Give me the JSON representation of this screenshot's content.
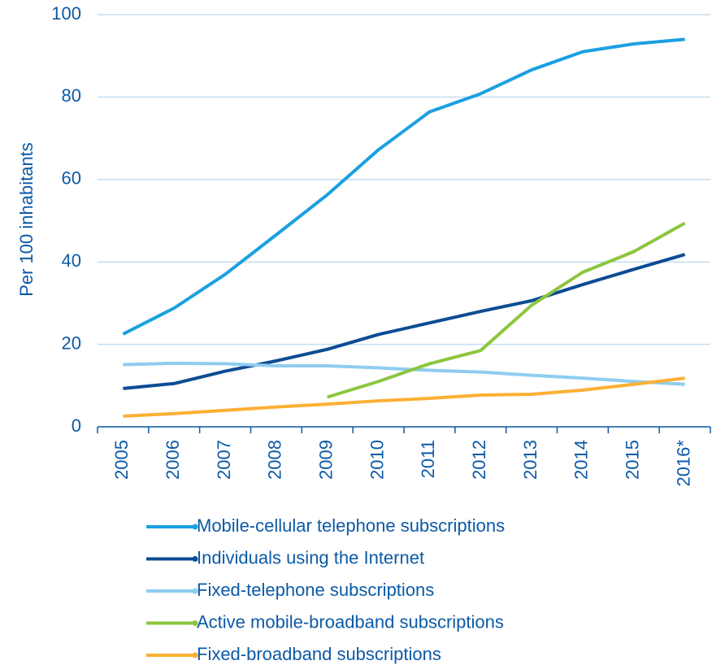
{
  "chart_data": {
    "type": "line",
    "y_label": "Per 100 inhabitants",
    "categories": [
      "2005",
      "2006",
      "2007",
      "2008",
      "2009",
      "2010",
      "2011",
      "2012",
      "2013",
      "2014",
      "2015",
      "2016*"
    ],
    "ylim": [
      0,
      100
    ],
    "yticks": [
      0,
      20,
      40,
      60,
      80,
      100
    ],
    "grid": true,
    "series": [
      {
        "name": "Mobile-cellular telephone subscriptions",
        "color": "#1ba0e1",
        "values": [
          22.5,
          28.8,
          37,
          46.6,
          56.3,
          67.2,
          76.4,
          80.8,
          86.6,
          91,
          92.9,
          94
        ]
      },
      {
        "name": "Individuals using the Internet",
        "color": "#0d4c93",
        "values": [
          9.3,
          10.5,
          13.5,
          16,
          18.8,
          22.4,
          25.2,
          28,
          30.6,
          34.5,
          38.2,
          41.8
        ]
      },
      {
        "name": "Fixed-telephone subscriptions",
        "color": "#8ecdf0",
        "values": [
          15.1,
          15.4,
          15.3,
          14.8,
          14.8,
          14.3,
          13.7,
          13.3,
          12.5,
          11.8,
          11,
          10.3
        ]
      },
      {
        "name": "Active mobile-broadband subscriptions",
        "color": "#8cc63f",
        "values": [
          null,
          null,
          null,
          null,
          7.2,
          11,
          15.3,
          18.5,
          29.5,
          37.5,
          42.5,
          49.4
        ]
      },
      {
        "name": "Fixed-broadband subscriptions",
        "color": "#fbb034",
        "values": [
          2.6,
          3.2,
          4,
          4.8,
          5.5,
          6.3,
          6.9,
          7.7,
          7.9,
          8.9,
          10.3,
          11.8
        ]
      }
    ]
  }
}
